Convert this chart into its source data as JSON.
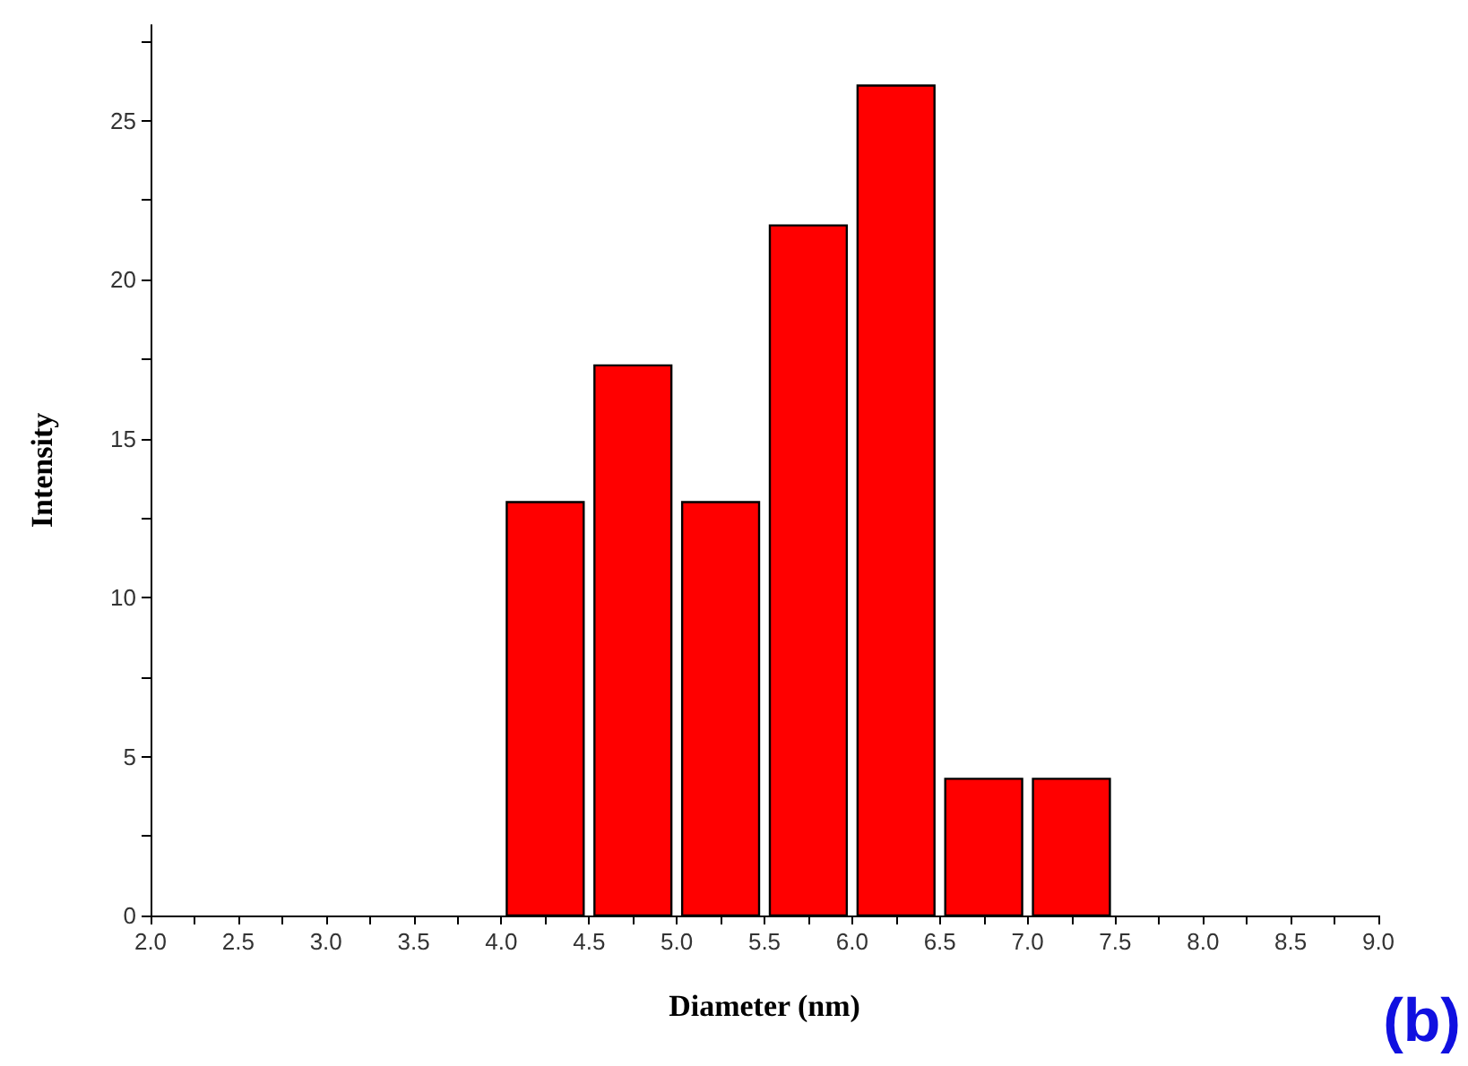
{
  "chart_data": {
    "type": "histogram",
    "xlabel": "Diameter (nm)",
    "ylabel": "Intensity",
    "bins": [
      4.0,
      4.5,
      5.0,
      5.5,
      6.0,
      6.5,
      7.0,
      7.5
    ],
    "values": [
      13.0,
      17.3,
      13.0,
      21.7,
      26.1,
      4.3,
      4.3
    ],
    "color": "#ff0000",
    "xlim": [
      2.0,
      9.0
    ],
    "xticks": [
      {
        "value": 2,
        "label": "2.0"
      },
      {
        "value": 2.5,
        "label": "2.5"
      },
      {
        "value": 3,
        "label": "3.0"
      },
      {
        "value": 3.5,
        "label": "3.5"
      },
      {
        "value": 4,
        "label": "4.0"
      },
      {
        "value": 4.5,
        "label": "4.5"
      },
      {
        "value": 5,
        "label": "5.0"
      },
      {
        "value": 5.5,
        "label": "5.5"
      },
      {
        "value": 6,
        "label": "6.0"
      },
      {
        "value": 6.5,
        "label": "6.5"
      },
      {
        "value": 7,
        "label": "7.0"
      },
      {
        "value": 7.5,
        "label": "7.5"
      },
      {
        "value": 8,
        "label": "8.0"
      },
      {
        "value": 8.5,
        "label": "8.5"
      },
      {
        "value": 9,
        "label": "9.0"
      }
    ],
    "ylim": [
      0,
      28
    ],
    "yticks": [
      0,
      5,
      10,
      15,
      20,
      25
    ],
    "grid": false,
    "annotations": [
      "(b)"
    ]
  }
}
